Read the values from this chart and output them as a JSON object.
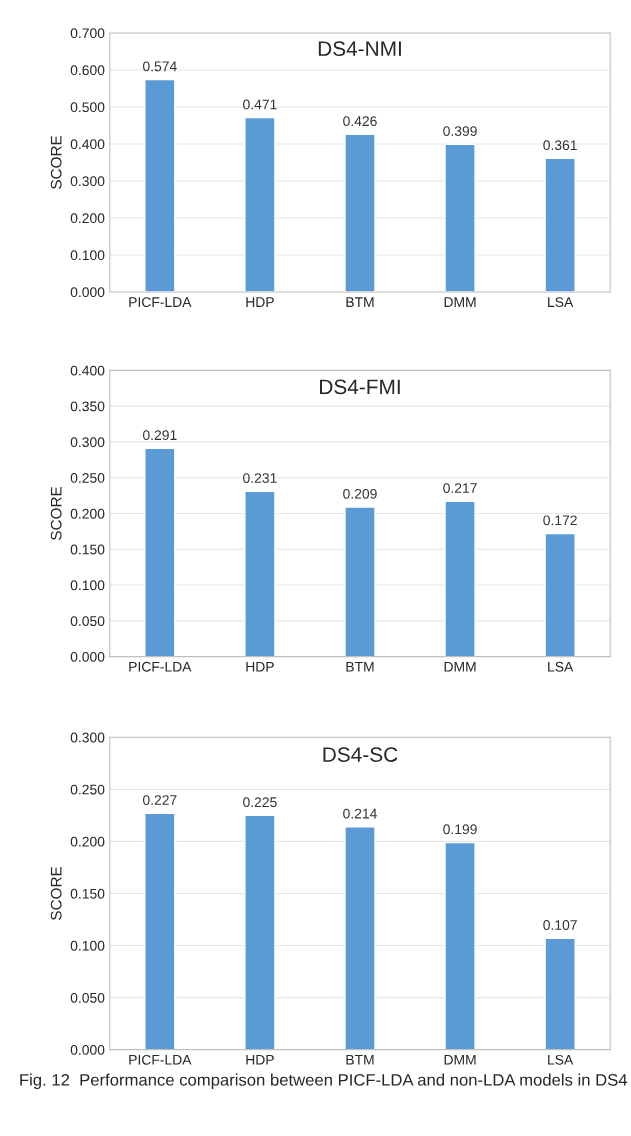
{
  "chart_data": [
    {
      "type": "bar",
      "title": "DS4-NMI",
      "ylabel": "SCORE",
      "categories": [
        "PICF-LDA",
        "HDP",
        "BTM",
        "DMM",
        "LSA"
      ],
      "values": [
        0.574,
        0.471,
        0.426,
        0.399,
        0.361
      ],
      "color": "#5b9bd5",
      "ylim": [
        0,
        0.7
      ],
      "yticks": [
        {
          "value": 0,
          "label": "0.000"
        },
        {
          "value": 0.1,
          "label": "0.100"
        },
        {
          "value": 0.2,
          "label": "0.200"
        },
        {
          "value": 0.3,
          "label": "0.300"
        },
        {
          "value": 0.4,
          "label": "0.400"
        },
        {
          "value": 0.5,
          "label": "0.500"
        },
        {
          "value": 0.6,
          "label": "0.600"
        },
        {
          "value": 0.7,
          "label": "0.700"
        }
      ],
      "grid": "y",
      "data_labels": true
    },
    {
      "type": "bar",
      "title": "DS4-FMI",
      "ylabel": "SCORE",
      "categories": [
        "PICF-LDA",
        "HDP",
        "BTM",
        "DMM",
        "LSA"
      ],
      "values": [
        0.291,
        0.231,
        0.209,
        0.217,
        0.172
      ],
      "color": "#5b9bd5",
      "ylim": [
        0,
        0.4
      ],
      "yticks": [
        {
          "value": 0,
          "label": "0.000"
        },
        {
          "value": 0.05,
          "label": "0.050"
        },
        {
          "value": 0.1,
          "label": "0.100"
        },
        {
          "value": 0.15,
          "label": "0.150"
        },
        {
          "value": 0.2,
          "label": "0.200"
        },
        {
          "value": 0.25,
          "label": "0.250"
        },
        {
          "value": 0.3,
          "label": "0.300"
        },
        {
          "value": 0.35,
          "label": "0.350"
        },
        {
          "value": 0.4,
          "label": "0.400"
        }
      ],
      "grid": "y",
      "data_labels": true
    },
    {
      "type": "bar",
      "title": "DS4-SC",
      "ylabel": "SCORE",
      "categories": [
        "PICF-LDA",
        "HDP",
        "BTM",
        "DMM",
        "LSA"
      ],
      "values": [
        0.227,
        0.225,
        0.214,
        0.199,
        0.107
      ],
      "color": "#5b9bd5",
      "ylim": [
        0,
        0.3
      ],
      "yticks": [
        {
          "value": 0,
          "label": "0.000"
        },
        {
          "value": 0.05,
          "label": "0.050"
        },
        {
          "value": 0.1,
          "label": "0.100"
        },
        {
          "value": 0.15,
          "label": "0.150"
        },
        {
          "value": 0.2,
          "label": "0.200"
        },
        {
          "value": 0.25,
          "label": "0.250"
        },
        {
          "value": 0.3,
          "label": "0.300"
        }
      ],
      "grid": "y",
      "data_labels": true,
      "annotations": [
        "Fig. 12  Performance comparison between PICF-LDA and non-LDA models in DS4"
      ]
    }
  ]
}
